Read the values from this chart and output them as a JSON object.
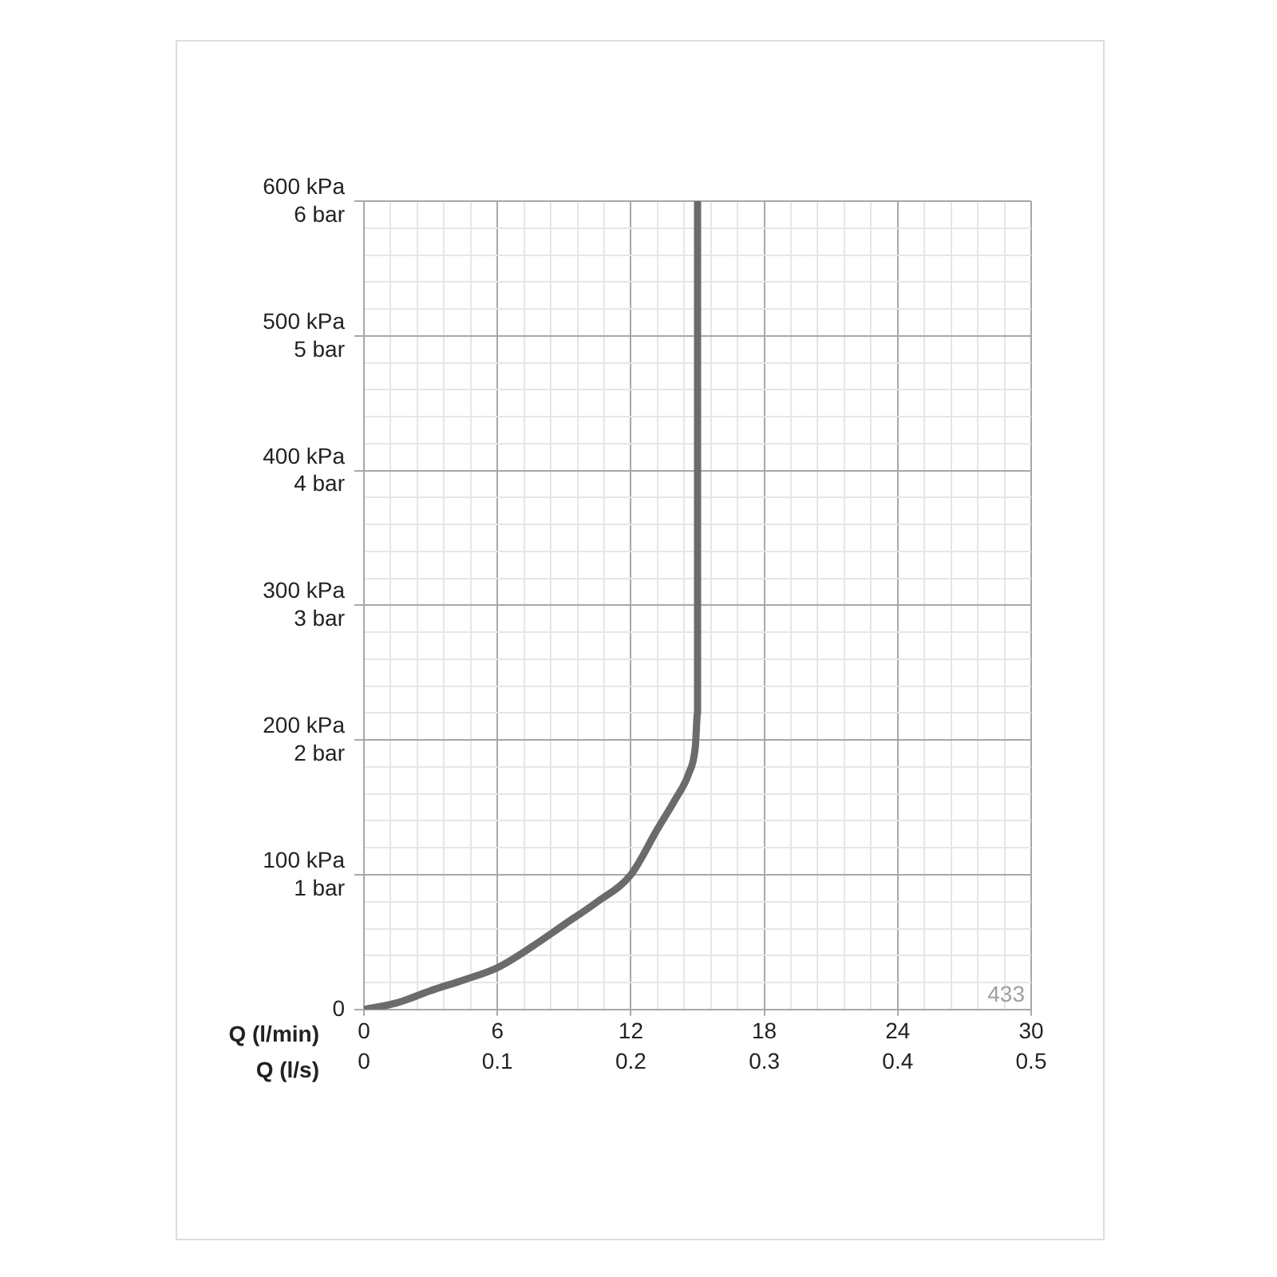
{
  "chart_data": {
    "type": "line",
    "xlabel": "Q (l/min)",
    "x2label": "Q (l/s)",
    "series": [
      {
        "color": "#6b6b6b",
        "x": [
          0,
          1.5,
          3,
          4.5,
          6,
          7.5,
          9,
          10.5,
          12,
          13.2,
          14,
          14.6,
          14.9,
          15,
          15
        ],
        "values": [
          0,
          5,
          14,
          22,
          31,
          46,
          63,
          80,
          100,
          134,
          156,
          175,
          195,
          220,
          600
        ]
      }
    ],
    "xlim": [
      0,
      30
    ],
    "xticks": [
      0,
      {
        "value": 1.2,
        "label": null
      },
      {
        "value": 2.4,
        "label": null
      },
      {
        "value": 3.6,
        "label": null
      },
      {
        "value": 4.8,
        "label": null
      },
      6,
      {
        "value": 7.2,
        "label": null
      },
      {
        "value": 8.4,
        "label": null
      },
      {
        "value": 9.6,
        "label": null
      },
      {
        "value": 10.8,
        "label": null
      },
      12,
      {
        "value": 13.2,
        "label": null
      },
      {
        "value": 14.4,
        "label": null
      },
      {
        "value": 15.6,
        "label": null
      },
      {
        "value": 16.8,
        "label": null
      },
      18,
      {
        "value": 19.2,
        "label": null
      },
      {
        "value": 20.4,
        "label": null
      },
      {
        "value": 21.6,
        "label": null
      },
      {
        "value": 22.8,
        "label": null
      },
      24,
      {
        "value": 25.2,
        "label": null
      },
      {
        "value": 26.4,
        "label": null
      },
      {
        "value": 27.6,
        "label": null
      },
      {
        "value": 28.8,
        "label": null
      },
      30
    ],
    "x2lim": [
      0,
      0.5
    ],
    "x2ticks": [
      0,
      0.1,
      0.2,
      0.3,
      0.4,
      0.5
    ],
    "y2lim": [
      0,
      6
    ],
    "y2ticks": [
      {
        "value": 0,
        "label": null
      },
      {
        "value": 1,
        "label": "1 bar"
      },
      {
        "value": 2,
        "label": "2 bar"
      },
      {
        "value": 3,
        "label": "3 bar"
      },
      {
        "value": 4,
        "label": "4 bar"
      },
      {
        "value": 5,
        "label": "5 bar"
      },
      {
        "value": 6,
        "label": "6 bar"
      }
    ],
    "ylim": [
      0,
      600
    ],
    "yticks": [
      0,
      {
        "value": 20,
        "label": null
      },
      {
        "value": 40,
        "label": null
      },
      {
        "value": 60,
        "label": null
      },
      {
        "value": 80,
        "label": null
      },
      {
        "value": 100,
        "label": "100 kPa"
      },
      {
        "value": 120,
        "label": null
      },
      {
        "value": 140,
        "label": null
      },
      {
        "value": 160,
        "label": null
      },
      {
        "value": 180,
        "label": null
      },
      {
        "value": 200,
        "label": "200 kPa"
      },
      {
        "value": 220,
        "label": null
      },
      {
        "value": 240,
        "label": null
      },
      {
        "value": 260,
        "label": null
      },
      {
        "value": 280,
        "label": null
      },
      {
        "value": 300,
        "label": "300 kPa"
      },
      {
        "value": 320,
        "label": null
      },
      {
        "value": 340,
        "label": null
      },
      {
        "value": 360,
        "label": null
      },
      {
        "value": 380,
        "label": null
      },
      {
        "value": 400,
        "label": "400 kPa"
      },
      {
        "value": 420,
        "label": null
      },
      {
        "value": 440,
        "label": null
      },
      {
        "value": 460,
        "label": null
      },
      {
        "value": 480,
        "label": null
      },
      {
        "value": 500,
        "label": "500 kPa"
      },
      {
        "value": 520,
        "label": null
      },
      {
        "value": 540,
        "label": null
      },
      {
        "value": 560,
        "label": null
      },
      {
        "value": 580,
        "label": null
      },
      {
        "value": 600,
        "label": "600 kPa"
      }
    ],
    "grid": true,
    "legend": false,
    "marker": "none",
    "line_style": "solid",
    "annotations": [
      "433"
    ]
  }
}
